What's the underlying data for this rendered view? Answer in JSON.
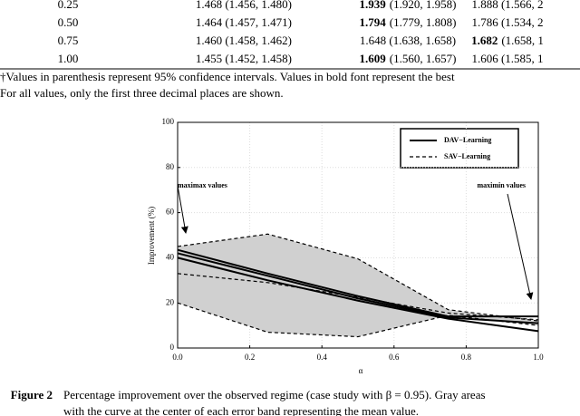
{
  "table": {
    "rows": [
      [
        {
          "text": "0.25"
        },
        {
          "text": "1.468 (1.456, 1.480)"
        },
        {
          "bold": "1.939",
          "rest": "(1.920, 1.958)"
        },
        {
          "text": "1.888 (1.566, 2"
        }
      ],
      [
        {
          "text": "0.50"
        },
        {
          "text": "1.464 (1.457, 1.471)"
        },
        {
          "bold": "1.794",
          "rest": "(1.779, 1.808)"
        },
        {
          "text": "1.786 (1.534, 2"
        }
      ],
      [
        {
          "text": "0.75"
        },
        {
          "text": "1.460 (1.458, 1.462)"
        },
        {
          "text": "1.648 (1.638, 1.658)"
        },
        {
          "bold": "1.682",
          "rest": "(1.658, 1"
        }
      ],
      [
        {
          "text": "1.00"
        },
        {
          "text": "1.455 (1.452, 1.458)"
        },
        {
          "bold": "1.609",
          "rest": "(1.560, 1.657)"
        },
        {
          "text": "1.606 (1.585, 1"
        }
      ]
    ],
    "footnote": [
      "†Values in parenthesis represent 95% confidence intervals. Values in bold font represent the best",
      "For all values, only the first three decimal places are shown."
    ]
  },
  "chart_data": {
    "type": "line",
    "x_label": "α",
    "y_label": "Improvement (%)",
    "x": [
      0,
      0.25,
      0.5,
      0.75,
      1
    ],
    "xlim": [
      0,
      1
    ],
    "xticks": [
      {
        "value": 0,
        "label": "0.0"
      },
      0.2,
      0.4,
      0.6,
      0.8,
      {
        "value": 1,
        "label": "1.0"
      }
    ],
    "ylim": [
      0,
      100
    ],
    "yticks": [
      0,
      20,
      40,
      60,
      80,
      100
    ],
    "grid": true,
    "legend": "upper right",
    "series": [
      {
        "name": "DAV−Learning",
        "color": "#000000",
        "style": "solid",
        "band_color": "none",
        "mean": [
          42,
          32,
          22,
          13.5,
          11
        ],
        "upper": [
          43.5,
          33,
          23,
          14,
          14
        ],
        "lower": [
          40,
          30,
          21,
          13,
          7.5
        ]
      },
      {
        "name": "SAV−Learning",
        "color": "#000000",
        "style": "dashed",
        "band_color": "#d0d0d0",
        "mean": [
          33,
          29,
          22.5,
          15.5,
          12.5
        ],
        "upper": [
          45,
          50.5,
          39.5,
          17,
          12
        ],
        "lower": [
          20,
          7,
          5,
          14.5,
          10
        ]
      }
    ],
    "annotations": [
      "maximax values",
      "maximin values"
    ]
  },
  "caption": {
    "label": "Figure 2",
    "lines": [
      "Percentage improvement over the observed regime (case study with β = 0.95). Gray areas",
      "with the curve at the center of each error band representing the mean value."
    ]
  }
}
